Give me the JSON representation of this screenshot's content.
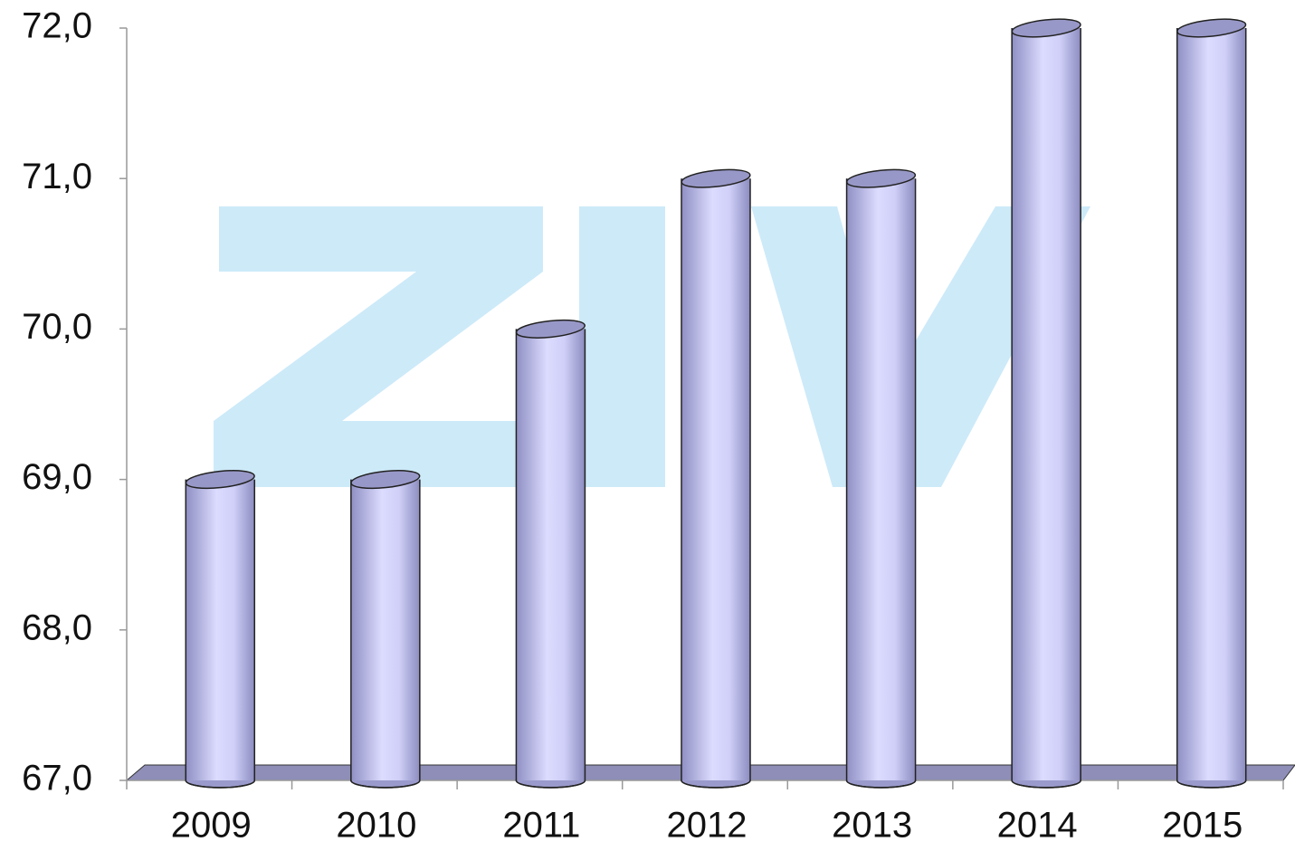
{
  "chart_data": {
    "type": "bar",
    "categories": [
      "2009",
      "2010",
      "2011",
      "2012",
      "2013",
      "2014",
      "2015"
    ],
    "values": [
      69,
      69,
      70,
      71,
      71,
      72,
      72
    ],
    "color": "#c8c8f4",
    "ylim": [
      67,
      72
    ],
    "yticks": [
      {
        "value": 67,
        "label": "67,0"
      },
      {
        "value": 68,
        "label": "68,0"
      },
      {
        "value": 69,
        "label": "69,0"
      },
      {
        "value": 70,
        "label": "70,0"
      },
      {
        "value": 71,
        "label": "71,0"
      },
      {
        "value": 72,
        "label": "72,0"
      }
    ],
    "grid": false
  }
}
